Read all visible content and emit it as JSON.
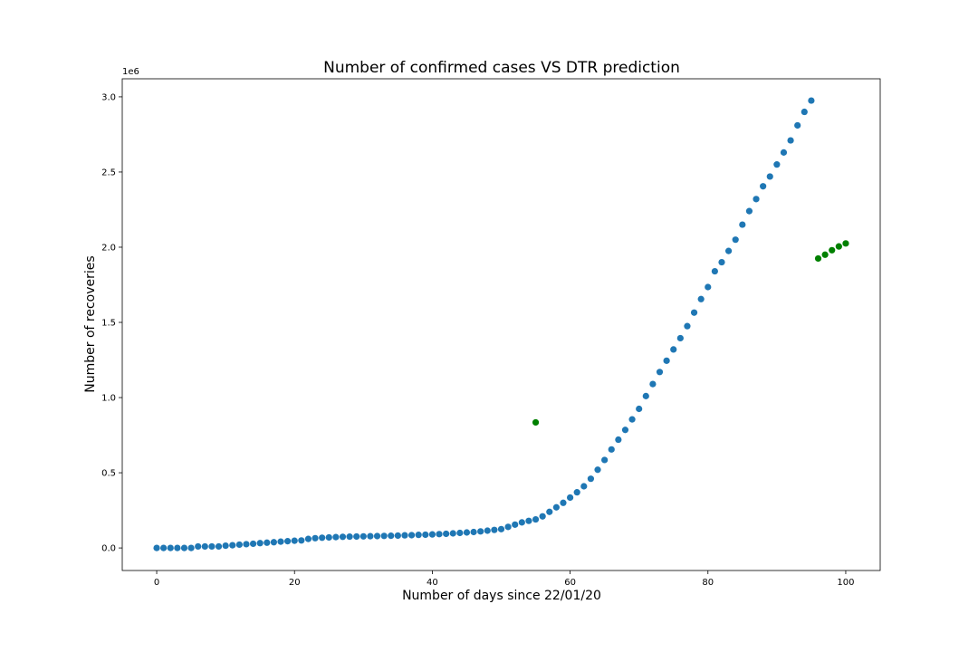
{
  "chart_data": {
    "type": "scatter",
    "title": "Number of confirmed cases VS DTR prediction",
    "xlabel": "Number of days since 22/01/20",
    "ylabel": "Number of recoveries",
    "y_offset_label": "1e6",
    "xlim": [
      -5,
      105
    ],
    "ylim": [
      -0.15,
      3.12
    ],
    "x_ticks": [
      0,
      20,
      40,
      60,
      80,
      100
    ],
    "x_tick_labels": [
      "0",
      "20",
      "40",
      "60",
      "80",
      "100"
    ],
    "y_ticks": [
      0.0,
      0.5,
      1.0,
      1.5,
      2.0,
      2.5,
      3.0
    ],
    "y_tick_labels": [
      "0.0",
      "0.5",
      "1.0",
      "1.5",
      "2.0",
      "2.5",
      "3.0"
    ],
    "grid": false,
    "series": [
      {
        "color": "#1f77b4",
        "x": [
          0,
          1,
          2,
          3,
          4,
          5,
          6,
          7,
          8,
          9,
          10,
          11,
          12,
          13,
          14,
          15,
          16,
          17,
          18,
          19,
          20,
          21,
          22,
          23,
          24,
          25,
          26,
          27,
          28,
          29,
          30,
          31,
          32,
          33,
          34,
          35,
          36,
          37,
          38,
          39,
          40,
          41,
          42,
          43,
          44,
          45,
          46,
          47,
          48,
          49,
          50,
          51,
          52,
          53,
          54,
          55,
          56,
          57,
          58,
          59,
          60,
          61,
          62,
          63,
          64,
          65,
          66,
          67,
          68,
          69,
          70,
          71,
          72,
          73,
          74,
          75,
          76,
          77,
          78,
          79,
          80,
          81,
          82,
          83,
          84,
          85,
          86,
          87,
          88,
          89,
          90,
          91,
          92,
          93,
          94,
          95
        ],
        "y": [
          0.0,
          0.0,
          0.0,
          0.0,
          0.0,
          0.0,
          0.01,
          0.01,
          0.01,
          0.01,
          0.015,
          0.018,
          0.022,
          0.025,
          0.028,
          0.032,
          0.035,
          0.038,
          0.042,
          0.045,
          0.048,
          0.05,
          0.06,
          0.065,
          0.068,
          0.07,
          0.072,
          0.074,
          0.075,
          0.076,
          0.077,
          0.078,
          0.079,
          0.08,
          0.081,
          0.082,
          0.084,
          0.085,
          0.087,
          0.088,
          0.09,
          0.092,
          0.094,
          0.097,
          0.1,
          0.103,
          0.106,
          0.11,
          0.115,
          0.12,
          0.125,
          0.14,
          0.155,
          0.17,
          0.18,
          0.19,
          0.21,
          0.24,
          0.27,
          0.3,
          0.335,
          0.37,
          0.41,
          0.46,
          0.52,
          0.585,
          0.655,
          0.72,
          0.785,
          0.855,
          0.925,
          1.01,
          1.09,
          1.17,
          1.245,
          1.32,
          1.395,
          1.475,
          1.565,
          1.655,
          1.735,
          1.84,
          1.9,
          1.975,
          2.05,
          2.15,
          2.24,
          2.32,
          2.405,
          2.47,
          2.55,
          2.63,
          2.71,
          2.81,
          2.9,
          2.975
        ]
      },
      {
        "color": "#008000",
        "x": [
          55,
          96,
          97,
          98,
          99,
          100
        ],
        "y": [
          0.835,
          1.925,
          1.95,
          1.98,
          2.005,
          2.025
        ]
      }
    ]
  }
}
